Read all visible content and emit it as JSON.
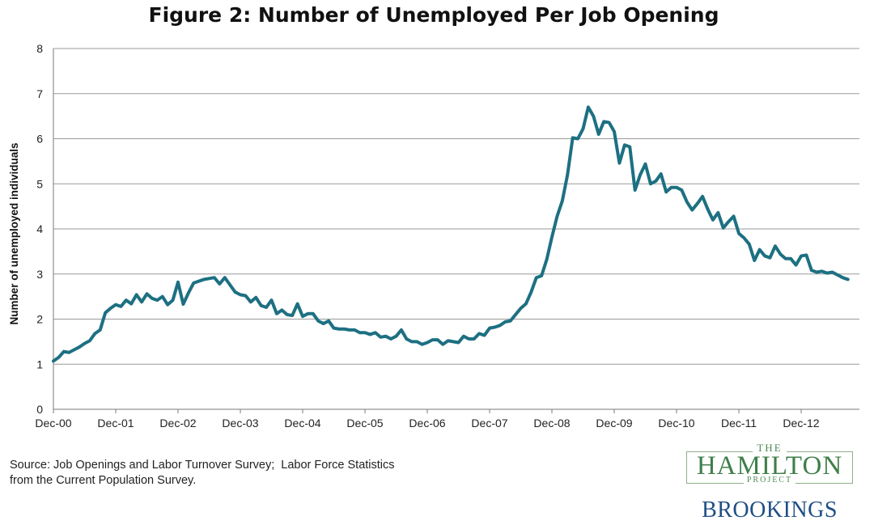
{
  "chart_data": {
    "type": "line",
    "title": "Figure 2: Number of Unemployed Per Job Opening",
    "xlabel": "",
    "ylabel": "Number of unemployed individuals",
    "ylim": [
      0,
      8
    ],
    "yticks": [
      0,
      1,
      2,
      3,
      4,
      5,
      6,
      7,
      8
    ],
    "xticks": [
      "Dec-00",
      "Dec-01",
      "Dec-02",
      "Dec-03",
      "Dec-04",
      "Dec-05",
      "Dec-06",
      "Dec-07",
      "Dec-08",
      "Dec-09",
      "Dec-10",
      "Dec-11",
      "Dec-12"
    ],
    "grid": true,
    "x_start": "Dec-00",
    "x_end": "Jun-13",
    "series_color": "#1d7082",
    "series": [
      {
        "values": [
          1.07,
          1.15,
          1.28,
          1.26,
          1.32,
          1.38,
          1.46,
          1.52,
          1.68,
          1.76,
          2.14,
          2.24,
          2.32,
          2.28,
          2.42,
          2.34,
          2.54,
          2.38,
          2.56,
          2.46,
          2.42,
          2.5,
          2.32,
          2.42,
          2.82,
          2.33,
          2.58,
          2.8,
          2.84,
          2.88,
          2.9,
          2.92,
          2.78,
          2.92,
          2.76,
          2.6,
          2.54,
          2.52,
          2.38,
          2.48,
          2.3,
          2.26,
          2.42,
          2.12,
          2.2,
          2.1,
          2.08,
          2.34,
          2.06,
          2.12,
          2.12,
          1.96,
          1.9,
          1.96,
          1.8,
          1.78,
          1.78,
          1.76,
          1.76,
          1.7,
          1.7,
          1.66,
          1.7,
          1.6,
          1.62,
          1.56,
          1.62,
          1.76,
          1.56,
          1.5,
          1.5,
          1.44,
          1.48,
          1.54,
          1.54,
          1.44,
          1.52,
          1.5,
          1.48,
          1.62,
          1.56,
          1.56,
          1.68,
          1.64,
          1.8,
          1.82,
          1.86,
          1.94,
          1.96,
          2.1,
          2.24,
          2.34,
          2.6,
          2.92,
          2.96,
          3.32,
          3.82,
          4.28,
          4.62,
          5.2,
          6.02,
          6.0,
          6.22,
          6.7,
          6.5,
          6.1,
          6.38,
          6.36,
          6.16,
          5.46,
          5.86,
          5.82,
          4.86,
          5.2,
          5.44,
          5.0,
          5.06,
          5.22,
          4.82,
          4.92,
          4.92,
          4.86,
          4.6,
          4.42,
          4.56,
          4.72,
          4.44,
          4.2,
          4.36,
          4.02,
          4.16,
          4.28,
          3.9,
          3.8,
          3.66,
          3.3,
          3.54,
          3.4,
          3.36,
          3.62,
          3.44,
          3.34,
          3.34,
          3.2,
          3.4,
          3.42,
          3.08,
          3.04,
          3.06,
          3.02,
          3.04,
          2.98,
          2.92,
          2.88
        ]
      }
    ]
  },
  "source": {
    "line1": "Source: Job Openings and Labor Turnover Survey;  Labor Force Statistics",
    "line2": "from the Current Population Survey."
  },
  "logos": {
    "hamilton_the": "THE",
    "hamilton_name": "HAMILTON",
    "hamilton_project": "PROJECT",
    "brookings": "BROOKINGS",
    "hamilton_color": "#3f7f49",
    "brookings_color": "#1f4f86"
  }
}
